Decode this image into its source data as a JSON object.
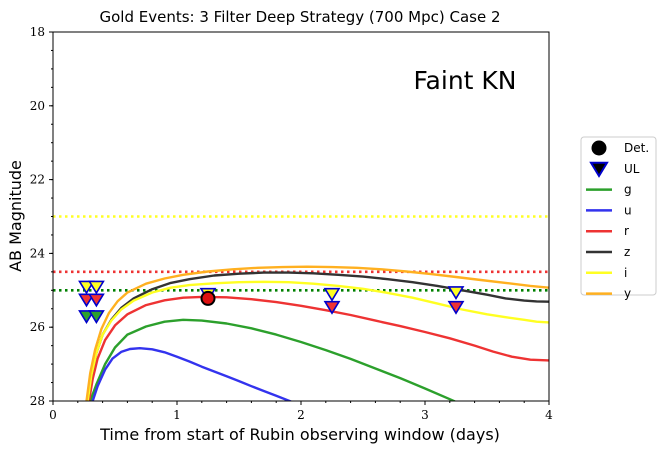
{
  "chart_data": {
    "type": "line",
    "title": "Gold Events: 3 Filter Deep Strategy (700 Mpc) Case 2",
    "annotation": "Faint KN",
    "xlabel": "Time from start of Rubin observing window (days)",
    "ylabel": "AB Magnitude",
    "xlim": [
      0,
      4
    ],
    "ylim": [
      28,
      18
    ],
    "y_inverted": true,
    "xticks": [
      0,
      1,
      2,
      3,
      4
    ],
    "yticks": [
      18,
      20,
      22,
      24,
      26,
      28
    ],
    "grid": false,
    "legend_position": "right-outside",
    "colors": {
      "g": "#2ca02c",
      "u": "#3333ee",
      "r": "#ee3333",
      "z": "#333333",
      "i": "#ffff22",
      "y": "#ffb020",
      "marker_edge": "#0000cc",
      "detection_fill": "#dd1111"
    },
    "legend": [
      {
        "label": "Det.",
        "kind": "circle",
        "color": "#000000"
      },
      {
        "label": "UL",
        "kind": "triangle",
        "color": "#0000cc"
      },
      {
        "label": "g",
        "kind": "line",
        "color": "#2ca02c"
      },
      {
        "label": "u",
        "kind": "line",
        "color": "#3333ee"
      },
      {
        "label": "r",
        "kind": "line",
        "color": "#ee3333"
      },
      {
        "label": "z",
        "kind": "line",
        "color": "#333333"
      },
      {
        "label": "i",
        "kind": "line",
        "color": "#ffff22"
      },
      {
        "label": "y",
        "kind": "line",
        "color": "#ffb020"
      }
    ],
    "series": [
      {
        "name": "g",
        "color": "#2ca02c",
        "x": [
          0.3,
          0.35,
          0.42,
          0.5,
          0.6,
          0.75,
          0.9,
          1.05,
          1.2,
          1.4,
          1.6,
          1.8,
          2.0,
          2.2,
          2.4,
          2.6,
          2.8,
          3.0,
          3.2,
          3.4,
          3.6,
          3.8,
          4.0
        ],
        "y": [
          28.0,
          27.55,
          27.0,
          26.55,
          26.2,
          25.98,
          25.85,
          25.8,
          25.82,
          25.9,
          26.03,
          26.2,
          26.4,
          26.62,
          26.86,
          27.12,
          27.38,
          27.66,
          27.95,
          28.25,
          28.55,
          28.85,
          29.15
        ]
      },
      {
        "name": "u",
        "color": "#3333ee",
        "x": [
          0.32,
          0.36,
          0.42,
          0.48,
          0.55,
          0.62,
          0.7,
          0.8,
          0.9,
          1.0,
          1.1,
          1.2,
          1.3,
          1.4,
          1.5,
          1.6,
          1.7,
          1.8,
          1.9,
          2.0,
          2.1,
          2.2
        ],
        "y": [
          28.0,
          27.6,
          27.15,
          26.85,
          26.67,
          26.59,
          26.57,
          26.6,
          26.68,
          26.8,
          26.93,
          27.07,
          27.2,
          27.33,
          27.46,
          27.6,
          27.73,
          27.86,
          27.99,
          28.12,
          28.25,
          28.38
        ]
      },
      {
        "name": "r",
        "color": "#ee3333",
        "x": [
          0.29,
          0.32,
          0.36,
          0.42,
          0.5,
          0.6,
          0.75,
          0.9,
          1.05,
          1.2,
          1.4,
          1.6,
          1.8,
          2.0,
          2.2,
          2.4,
          2.6,
          2.8,
          3.0,
          3.2,
          3.4,
          3.55,
          3.7,
          3.85,
          4.0
        ],
        "y": [
          28.0,
          27.4,
          26.85,
          26.35,
          25.95,
          25.65,
          25.4,
          25.27,
          25.2,
          25.18,
          25.19,
          25.24,
          25.32,
          25.42,
          25.54,
          25.67,
          25.82,
          25.97,
          26.13,
          26.3,
          26.5,
          26.66,
          26.8,
          26.88,
          26.9
        ]
      },
      {
        "name": "z",
        "color": "#333333",
        "x": [
          0.28,
          0.31,
          0.35,
          0.4,
          0.47,
          0.55,
          0.65,
          0.8,
          0.95,
          1.1,
          1.3,
          1.5,
          1.7,
          1.9,
          2.1,
          2.3,
          2.5,
          2.7,
          2.9,
          3.1,
          3.3,
          3.5,
          3.65,
          3.8,
          3.9,
          4.0
        ],
        "y": [
          28.0,
          27.3,
          26.7,
          26.2,
          25.8,
          25.48,
          25.22,
          24.97,
          24.8,
          24.7,
          24.6,
          24.55,
          24.52,
          24.52,
          24.54,
          24.58,
          24.63,
          24.7,
          24.78,
          24.88,
          25.0,
          25.12,
          25.22,
          25.28,
          25.3,
          25.31
        ]
      },
      {
        "name": "i",
        "color": "#ffff22",
        "x": [
          0.28,
          0.31,
          0.35,
          0.4,
          0.47,
          0.55,
          0.65,
          0.8,
          0.95,
          1.1,
          1.3,
          1.5,
          1.7,
          1.9,
          2.1,
          2.3,
          2.5,
          2.7,
          2.9,
          3.1,
          3.3,
          3.5,
          3.65,
          3.8,
          3.9,
          4.0
        ],
        "y": [
          28.0,
          27.3,
          26.7,
          26.2,
          25.82,
          25.52,
          25.28,
          25.06,
          24.93,
          24.86,
          24.81,
          24.78,
          24.77,
          24.78,
          24.82,
          24.88,
          24.96,
          25.07,
          25.2,
          25.36,
          25.52,
          25.65,
          25.73,
          25.8,
          25.85,
          25.87
        ]
      },
      {
        "name": "y",
        "color": "#ffb020",
        "x": [
          0.27,
          0.3,
          0.34,
          0.39,
          0.45,
          0.52,
          0.6,
          0.75,
          0.9,
          1.05,
          1.25,
          1.45,
          1.65,
          1.85,
          2.05,
          2.25,
          2.45,
          2.65,
          2.85,
          3.05,
          3.25,
          3.45,
          3.65,
          3.85,
          4.0
        ],
        "y": [
          28.0,
          27.25,
          26.6,
          26.05,
          25.62,
          25.3,
          25.06,
          24.82,
          24.68,
          24.58,
          24.49,
          24.43,
          24.39,
          24.37,
          24.36,
          24.37,
          24.39,
          24.43,
          24.49,
          24.56,
          24.64,
          24.72,
          24.8,
          24.88,
          24.93
        ]
      }
    ],
    "limiting_magnitudes": [
      {
        "filter": "i",
        "value": 23.0,
        "color": "#ffff22"
      },
      {
        "filter": "r",
        "value": 24.5,
        "color": "#ee3333"
      },
      {
        "filter": "g",
        "value": 25.0,
        "color": "#008000"
      }
    ],
    "detections": [
      {
        "x": 1.25,
        "y": 25.22,
        "filter": "r"
      }
    ],
    "upper_limits": [
      {
        "x": 0.27,
        "y": 24.9,
        "filter": "i"
      },
      {
        "x": 0.35,
        "y": 24.9,
        "filter": "i"
      },
      {
        "x": 0.27,
        "y": 25.25,
        "filter": "r"
      },
      {
        "x": 0.35,
        "y": 25.25,
        "filter": "r"
      },
      {
        "x": 0.27,
        "y": 25.7,
        "filter": "g"
      },
      {
        "x": 0.35,
        "y": 25.7,
        "filter": "g"
      },
      {
        "x": 1.25,
        "y": 25.1,
        "filter": "i"
      },
      {
        "x": 2.25,
        "y": 25.1,
        "filter": "i"
      },
      {
        "x": 2.25,
        "y": 25.45,
        "filter": "r"
      },
      {
        "x": 3.25,
        "y": 25.05,
        "filter": "i"
      },
      {
        "x": 3.25,
        "y": 25.45,
        "filter": "r"
      }
    ]
  }
}
